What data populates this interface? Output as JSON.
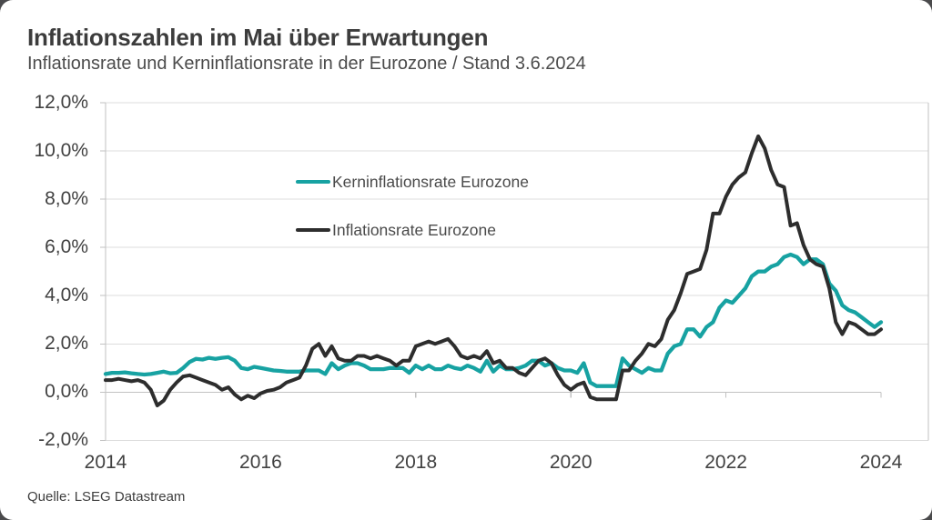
{
  "page": {
    "outer_background": "#4a4a4c",
    "card_background": "#ffffff"
  },
  "header": {
    "title": "Inflationszahlen im Mai über Erwartungen",
    "subtitle": "Inflationsrate und Kerninflationsrate in der Eurozone / Stand 3.6.2024"
  },
  "source": {
    "label": "Quelle: LSEG Datastream"
  },
  "colors": {
    "core_line": "#17A2A2",
    "headline_line": "#2D2D2D",
    "gridline": "#DCDCDC",
    "axis": "#C2C2C2"
  },
  "chart_data": {
    "type": "line",
    "title": "Inflationszahlen im Mai über Erwartungen",
    "subtitle": "Inflationsrate und Kerninflationsrate in der Eurozone / Stand 3.6.2024",
    "x_unit": "month",
    "x_start": "2014-05",
    "x_end": "2024-05",
    "xlabel": "",
    "ylabel": "",
    "ylim": [
      -2,
      12
    ],
    "grid": true,
    "legend_position": "inside-top-left",
    "x_ticks": [
      {
        "label": "2014",
        "month": 0
      },
      {
        "label": "2016",
        "month": 24
      },
      {
        "label": "2018",
        "month": 48
      },
      {
        "label": "2020",
        "month": 72
      },
      {
        "label": "2022",
        "month": 96
      },
      {
        "label": "2024",
        "month": 120
      }
    ],
    "y_ticks": [
      {
        "label": "12,0%",
        "value": 12
      },
      {
        "label": "10,0%",
        "value": 10
      },
      {
        "label": "8,0%",
        "value": 8
      },
      {
        "label": "6,0%",
        "value": 6
      },
      {
        "label": "4,0%",
        "value": 4
      },
      {
        "label": "2,0%",
        "value": 2
      },
      {
        "label": "0,0%",
        "value": 0
      },
      {
        "label": "-2,0%",
        "value": -2
      }
    ],
    "series": [
      {
        "name": "Kerninflationsrate Eurozone",
        "color": "#17A2A2",
        "stroke_width": 4.3,
        "values": [
          0.75,
          0.8,
          0.8,
          0.82,
          0.78,
          0.75,
          0.73,
          0.75,
          0.8,
          0.85,
          0.78,
          0.8,
          1.0,
          1.25,
          1.38,
          1.35,
          1.42,
          1.38,
          1.42,
          1.45,
          1.3,
          1.0,
          0.95,
          1.05,
          1.0,
          0.95,
          0.9,
          0.88,
          0.85,
          0.85,
          0.85,
          0.9,
          0.9,
          0.9,
          0.75,
          1.2,
          0.95,
          1.1,
          1.2,
          1.2,
          1.1,
          0.95,
          0.95,
          0.95,
          1.0,
          1.0,
          1.0,
          0.8,
          1.1,
          0.95,
          1.1,
          0.95,
          0.95,
          1.1,
          1.0,
          0.95,
          1.1,
          1.0,
          0.85,
          1.3,
          0.85,
          1.1,
          0.95,
          0.95,
          1.0,
          1.1,
          1.3,
          1.3,
          1.1,
          1.2,
          1.0,
          0.9,
          0.9,
          0.8,
          1.2,
          0.4,
          0.25,
          0.25,
          0.25,
          0.25,
          1.4,
          1.1,
          0.95,
          0.8,
          1.0,
          0.9,
          0.9,
          1.6,
          1.9,
          2.0,
          2.6,
          2.6,
          2.3,
          2.7,
          2.9,
          3.5,
          3.8,
          3.7,
          4.0,
          4.3,
          4.8,
          5.0,
          5.0,
          5.2,
          5.3,
          5.6,
          5.7,
          5.6,
          5.3,
          5.5,
          5.5,
          5.3,
          4.5,
          4.2,
          3.6,
          3.4,
          3.3,
          3.1,
          2.9,
          2.7,
          2.9
        ]
      },
      {
        "name": "Inflationsrate Eurozone",
        "color": "#2D2D2D",
        "stroke_width": 4,
        "values": [
          0.5,
          0.5,
          0.55,
          0.5,
          0.45,
          0.5,
          0.4,
          0.1,
          -0.55,
          -0.35,
          0.1,
          0.4,
          0.65,
          0.7,
          0.6,
          0.5,
          0.4,
          0.3,
          0.1,
          0.2,
          -0.1,
          -0.3,
          -0.15,
          -0.25,
          -0.05,
          0.05,
          0.1,
          0.2,
          0.4,
          0.5,
          0.6,
          1.1,
          1.8,
          2.0,
          1.5,
          1.9,
          1.4,
          1.3,
          1.3,
          1.5,
          1.5,
          1.4,
          1.5,
          1.4,
          1.3,
          1.1,
          1.3,
          1.3,
          1.9,
          2.0,
          2.1,
          2.0,
          2.1,
          2.2,
          1.9,
          1.5,
          1.4,
          1.5,
          1.4,
          1.7,
          1.2,
          1.3,
          1.0,
          1.0,
          0.8,
          0.7,
          1.0,
          1.3,
          1.4,
          1.2,
          0.7,
          0.3,
          0.1,
          0.3,
          0.4,
          -0.2,
          -0.3,
          -0.3,
          -0.3,
          -0.3,
          0.9,
          0.9,
          1.3,
          1.6,
          2.0,
          1.9,
          2.2,
          3.0,
          3.4,
          4.1,
          4.9,
          5.0,
          5.1,
          5.9,
          7.4,
          7.4,
          8.1,
          8.6,
          8.9,
          9.1,
          9.9,
          10.6,
          10.1,
          9.2,
          8.6,
          8.5,
          6.9,
          7.0,
          6.1,
          5.5,
          5.3,
          5.2,
          4.3,
          2.9,
          2.4,
          2.9,
          2.8,
          2.6,
          2.4,
          2.4,
          2.6
        ]
      }
    ]
  }
}
